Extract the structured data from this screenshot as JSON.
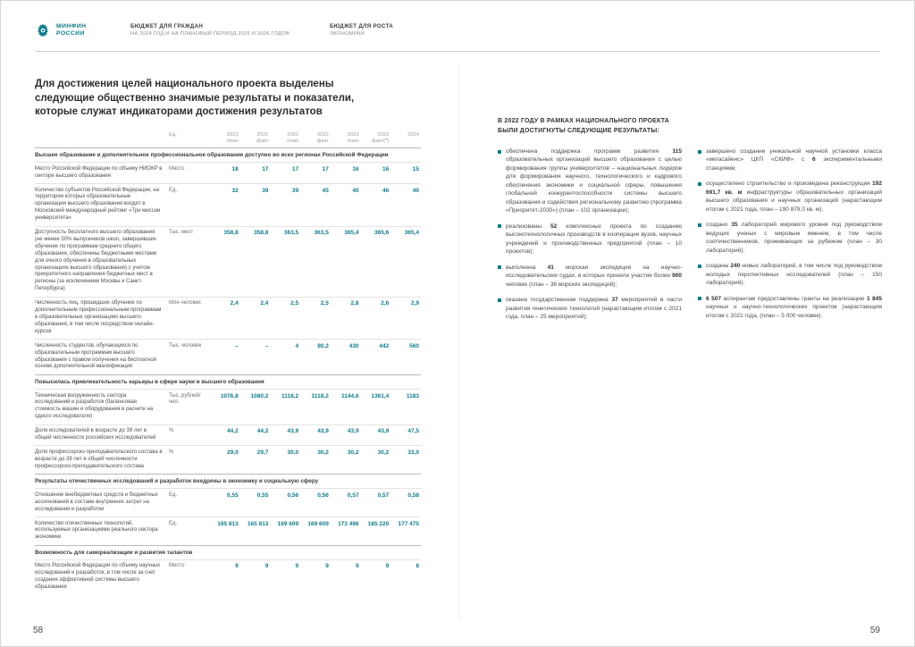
{
  "colors": {
    "accent": "#0f7b8a"
  },
  "header": {
    "logo": {
      "line1": "МИНФИН",
      "line2": "РОССИИ"
    },
    "center": {
      "line1": "БЮДЖЕТ ДЛЯ ГРАЖДАН",
      "line2": "НА 2024 ГОД И НА ПЛАНОВЫЙ ПЕРИОД 2025 И 2026 ГОДОВ"
    },
    "right": {
      "line1": "БЮДЖЕТ ДЛЯ РОСТА",
      "line2": "ЭКОНОМИКИ"
    }
  },
  "left_page": {
    "title": "Для достижения целей национального проекта выделены следующие общественно значимые результаты и показатели, которые служат индикаторами достижения результатов",
    "page_number": "58",
    "table": {
      "unit_label": "Ед.",
      "year_columns": [
        {
          "year": "2021",
          "kind": "план"
        },
        {
          "year": "2021",
          "kind": "факт"
        },
        {
          "year": "2022",
          "kind": "план"
        },
        {
          "year": "2022",
          "kind": "факт"
        },
        {
          "year": "2023",
          "kind": "план"
        },
        {
          "year": "2023",
          "kind": "факт(*)"
        },
        {
          "year": "2024",
          "kind": ""
        }
      ],
      "sections": [
        {
          "title": "Высшее образование и дополнительное профессиональное образование доступно во всех регионах Российской Федерации",
          "rows": [
            {
              "label": "Место Российской Федерации по объему НИОКР в секторе высшего образования",
              "unit": "Место",
              "values": [
                "18",
                "17",
                "17",
                "17",
                "16",
                "16",
                "15"
              ]
            },
            {
              "label": "Количество субъектов Российской Федерации, на территории которых образовательные организации высшего образования входят в Московский международный рейтинг «Три миссии университета»",
              "unit": "Ед.",
              "values": [
                "32",
                "39",
                "39",
                "45",
                "40",
                "46",
                "40"
              ]
            },
            {
              "label": "Доступность бесплатного высшего образования (не менее 50% выпускников школ, завершивших обучение по программам среднего общего образования, обеспечены бюджетными местами для очного обучения в образовательных организациях высшего образования) с учетом приоритетного направления бюджетных мест в регионы (за исключением Москвы и Санкт-Петербурга)",
              "unit": "Тыс. мест",
              "values": [
                "358,8",
                "358,8",
                "363,5",
                "363,5",
                "365,4",
                "365,6",
                "365,4"
              ]
            },
            {
              "label": "Численность лиц, прошедших обучение по дополнительным профессиональным программам в образовательных организациях высшего образования, в том числе посредством онлайн-курсов",
              "unit": "Млн человек",
              "values": [
                "2,4",
                "2,4",
                "2,5",
                "2,5",
                "2,8",
                "2,6",
                "2,9"
              ]
            },
            {
              "label": "Численность студентов, обучающихся по образовательным программам высшего образования с правом получения на бесплатной основе дополнительной квалификации",
              "unit": "Тыс. человек",
              "values": [
                "–",
                "–",
                "4",
                "80,2",
                "430",
                "442",
                "560"
              ]
            }
          ]
        },
        {
          "title": "Повысилась привлекательность карьеры в сфере науки и высшего образования",
          "rows": [
            {
              "label": "Техническая вооруженность сектора исследований и разработок (балансовая стоимость машин и оборудования в расчете на одного исследователя)",
              "unit": "Тыс. рублей/чел.",
              "values": [
                "1076,8",
                "1080,2",
                "1118,2",
                "1118,2",
                "1144,6",
                "1361,4",
                "1183"
              ]
            },
            {
              "label": "Доля исследователей в возрасте до 39 лет в общей численности российских исследователей",
              "unit": "%",
              "values": [
                "44,2",
                "44,2",
                "43,9",
                "43,9",
                "43,9",
                "43,9",
                "47,5"
              ]
            },
            {
              "label": "Доля профессорско-преподавательского состава в возрасте до 39 лет в общей численности профессорско-преподавательского состава",
              "unit": "%",
              "values": [
                "29,0",
                "29,7",
                "30,0",
                "30,2",
                "30,2",
                "30,2",
                "33,0"
              ]
            }
          ]
        },
        {
          "title": "Результаты отечественных исследований и разработок внедрены в экономику и социальную сферу",
          "rows": [
            {
              "label": "Отношение внебюджетных средств и бюджетных ассигнований в составе внутренних затрат на исследования и разработки",
              "unit": "Ед.",
              "values": [
                "0,55",
                "0,55",
                "0,56",
                "0,56",
                "0,57",
                "0,57",
                "0,58"
              ]
            },
            {
              "label": "Количество отечественных технологий, используемых организациями реального сектора экономики",
              "unit": "Ед.",
              "values": [
                "165 813",
                "165 813",
                "169 609",
                "169 609",
                "173 496",
                "185 220",
                "177 475"
              ]
            }
          ]
        },
        {
          "title": "Возможность для самореализации и развития талантов",
          "rows": [
            {
              "label": "Место Российской Федерации по объему научных исследований и разработок, в том числе за счет создания эффективной системы высшего образования",
              "unit": "Место",
              "values": [
                "9",
                "9",
                "9",
                "9",
                "9",
                "9",
                "8"
              ]
            }
          ]
        }
      ]
    }
  },
  "right_page": {
    "title": "В 2022 ГОДУ В РАМКАХ НАЦИОНАЛЬНОГО ПРОЕКТА БЫЛИ ДОСТИГНУТЫ СЛЕДУЮЩИЕ РЕЗУЛЬТАТЫ:",
    "page_number": "59",
    "columns": [
      {
        "bullets": [
          {
            "segments": [
              {
                "t": "обеспечена поддержка программ развития "
              },
              {
                "t": "115",
                "b": true
              },
              {
                "t": " образовательных организаций высшего образования с целью формирования группы университетов – национальных лидеров для формирования научного, технологического и кадрового обеспечения экономики и социальной сферы, повышения глобальной конкурентоспособности системы высшего образования и содействия региональному развитию (программа «Приоритет-2030») (план – 102 организации);"
              }
            ]
          },
          {
            "segments": [
              {
                "t": "реализованы "
              },
              {
                "t": "52",
                "b": true
              },
              {
                "t": " комплексных проекта по созданию высокотехнологичных производств в кооперации вузов, научных учреждений и производственных предприятий (план – 10 проектов);"
              }
            ]
          },
          {
            "segments": [
              {
                "t": "выполнена "
              },
              {
                "t": "41",
                "b": true
              },
              {
                "t": " морская экспедиция на научно-исследовательских судах, в которых приняли участие более "
              },
              {
                "t": "900",
                "b": true
              },
              {
                "t": " человек (план – 36 морских экспедиций);"
              }
            ]
          },
          {
            "segments": [
              {
                "t": "оказана государственная поддержка "
              },
              {
                "t": "37",
                "b": true
              },
              {
                "t": " мероприятий в части развития генетических технологий (нарастающим итогом с 2021 года, план – 25 мероприятий);"
              }
            ]
          }
        ]
      },
      {
        "bullets": [
          {
            "segments": [
              {
                "t": "завершено создание уникальной научной установки класса «мегасайенс» ЦКП «СКИФ» с "
              },
              {
                "t": "6",
                "b": true
              },
              {
                "t": " экспериментальными станциями;"
              }
            ]
          },
          {
            "segments": [
              {
                "t": "осуществлено строительство и произведена реконструкция "
              },
              {
                "t": "192 691,7 кв. м",
                "b": true
              },
              {
                "t": " инфраструктуры образовательных организаций высшего образования и научных организаций (нарастающим итогом с 2021 года, план – 190 879,0 кв. м);"
              }
            ]
          },
          {
            "segments": [
              {
                "t": "создано "
              },
              {
                "t": "35",
                "b": true
              },
              {
                "t": " лабораторий мирового уровня под руководством ведущих ученых с мировым именем, в том числе соотечественников, проживающих за рубежом (план – 30 лабораторий);"
              }
            ]
          },
          {
            "segments": [
              {
                "t": "созданы "
              },
              {
                "t": "240",
                "b": true
              },
              {
                "t": " новых лабораторий, в том числе под руководством молодых перспективных исследователей (план – 150 лабораторий);"
              }
            ]
          },
          {
            "segments": [
              {
                "t": "6 507",
                "b": true
              },
              {
                "t": " аспирантам предоставлены гранты на реализацию "
              },
              {
                "t": "1 845",
                "b": true
              },
              {
                "t": " научных и научно-технологических проектов (нарастающим итогом с 2021 года, (план – 5 000 человек)."
              }
            ]
          }
        ]
      }
    ]
  }
}
